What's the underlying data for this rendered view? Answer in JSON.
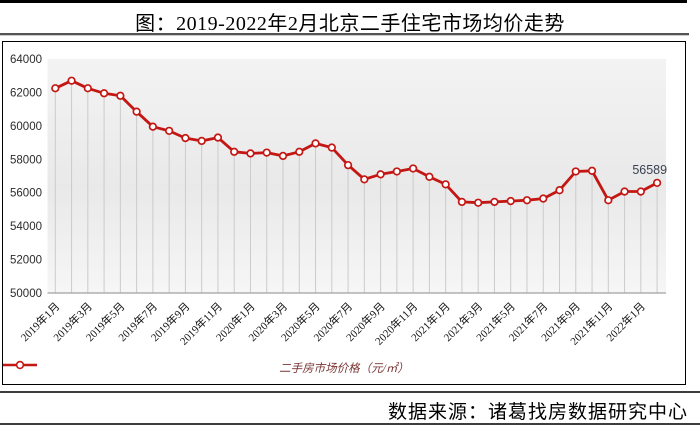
{
  "page": {
    "title": "图：2019-2022年2月北京二手住宅市场均价走势",
    "footer": "数据来源：诸葛找房数据研究中心"
  },
  "legend": {
    "label": "二手房市场价格（元/㎡）"
  },
  "chart_data": {
    "type": "line",
    "title": "图：2019-2022年2月北京二手住宅市场均价走势",
    "x": [
      "2019年1月",
      "2019年2月",
      "2019年3月",
      "2019年4月",
      "2019年5月",
      "2019年6月",
      "2019年7月",
      "2019年8月",
      "2019年9月",
      "2019年10月",
      "2019年11月",
      "2019年12月",
      "2020年1月",
      "2020年2月",
      "2020年3月",
      "2020年4月",
      "2020年5月",
      "2020年6月",
      "2020年7月",
      "2020年8月",
      "2020年9月",
      "2020年10月",
      "2020年11月",
      "2020年12月",
      "2021年1月",
      "2021年2月",
      "2021年3月",
      "2021年4月",
      "2021年5月",
      "2021年6月",
      "2021年7月",
      "2021年8月",
      "2021年9月",
      "2021年10月",
      "2021年11月",
      "2021年12月",
      "2022年1月",
      "2022年2月"
    ],
    "series": [
      {
        "name": "二手房市场价格（元/㎡）",
        "values": [
          62250,
          62700,
          62250,
          61950,
          61800,
          60850,
          59950,
          59700,
          59270,
          59100,
          59300,
          58450,
          58350,
          58400,
          58200,
          58450,
          58950,
          58700,
          57650,
          56800,
          57100,
          57270,
          57450,
          56950,
          56500,
          55450,
          55400,
          55450,
          55500,
          55550,
          55650,
          56150,
          57270,
          57310,
          55550,
          56070,
          56070,
          56589
        ]
      }
    ],
    "ylim": [
      50000,
      64000
    ],
    "ytick_step": 2000,
    "ytick_labels": [
      "50000",
      "52000",
      "54000",
      "56000",
      "58000",
      "60000",
      "62000",
      "64000"
    ],
    "xtick_every": 2,
    "annotation": {
      "index": 37,
      "text": "56589"
    },
    "grid": "vertical-drop-lines",
    "legend_position": "bottom-center",
    "colors": {
      "line": "#c41713",
      "marker_fill": "#ffffff",
      "drop_line": "#cbcbcb",
      "axis": "#a0a0a0",
      "plot_bg_top": "#f3f3f3",
      "plot_bg_mid": "#e9e9e9",
      "plot_bg_bottom": "#f6f6f6",
      "tick_text": "#2b2b2b",
      "annotation_text": "#3a4150"
    }
  }
}
